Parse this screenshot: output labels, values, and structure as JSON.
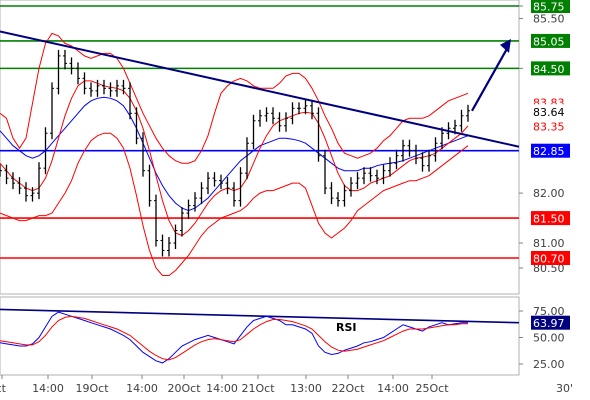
{
  "chart_data": [
    {
      "type": "line",
      "panel": "price",
      "title": "",
      "xlabel": "",
      "ylabel": "",
      "ylim": [
        80.3,
        85.85
      ],
      "grid": false,
      "y_ticks": [
        "85.75",
        "85.50",
        "84.50",
        "82.00",
        "81.00",
        "80.50"
      ],
      "levels": [
        {
          "value": 85.75,
          "label": "85.75",
          "color": "#008000"
        },
        {
          "value": 85.05,
          "label": "85.05",
          "color": "#008000"
        },
        {
          "value": 84.5,
          "label": "84.50",
          "color": "#008000"
        },
        {
          "value": 82.85,
          "label": "82.85",
          "color": "#0000ff"
        },
        {
          "value": 81.5,
          "label": "81.50",
          "color": "#ff0000"
        },
        {
          "value": 80.7,
          "label": "80.70",
          "color": "#ff0000"
        }
      ],
      "value_tags": [
        {
          "value": 83.83,
          "label": "83.83",
          "color": "#ff0000"
        },
        {
          "value": 83.64,
          "label": "83.64",
          "color": "#000000"
        },
        {
          "value": 83.35,
          "label": "83.35",
          "color": "#ff0000"
        }
      ],
      "trendline": {
        "color": "#000080",
        "from": 85.24,
        "to": 82.93
      },
      "forecast_arrow": {
        "color": "#000080",
        "from": 83.65,
        "to": 85.05
      },
      "series": [
        {
          "role": "price",
          "color": "#000000",
          "values": [
            82.45,
            82.3,
            82.2,
            82.1,
            81.95,
            82.0,
            82.5,
            83.2,
            84.1,
            84.75,
            84.6,
            84.5,
            84.3,
            84.1,
            84.05,
            84.15,
            84.1,
            84.05,
            84.15,
            84.1,
            83.6,
            83.1,
            82.45,
            81.85,
            81.05,
            80.85,
            81.0,
            81.25,
            81.6,
            81.75,
            81.9,
            82.1,
            82.3,
            82.25,
            82.2,
            82.1,
            81.85,
            82.4,
            83.0,
            83.45,
            83.55,
            83.6,
            83.5,
            83.35,
            83.5,
            83.7,
            83.7,
            83.75,
            83.6,
            82.75,
            82.1,
            81.9,
            81.85,
            82.05,
            82.2,
            82.3,
            82.4,
            82.35,
            82.3,
            82.45,
            82.6,
            82.75,
            82.95,
            82.85,
            82.7,
            82.55,
            82.75,
            83.0,
            83.2,
            83.3,
            83.35,
            83.55,
            83.65
          ]
        },
        {
          "role": "bollinger-upper",
          "color": "#ff0000",
          "values": [
            83.6,
            83.5,
            83.1,
            82.9,
            83.1,
            83.8,
            84.5,
            85.0,
            85.2,
            85.15,
            85.0,
            84.95,
            84.85,
            84.75,
            84.7,
            84.75,
            84.8,
            84.8,
            84.7,
            84.5,
            84.2,
            83.9,
            83.6,
            83.35,
            83.1,
            82.9,
            82.75,
            82.65,
            82.6,
            82.6,
            82.65,
            82.85,
            83.15,
            83.6,
            84.0,
            84.15,
            84.25,
            84.3,
            84.25,
            84.15,
            84.1,
            84.1,
            84.1,
            84.2,
            84.35,
            84.4,
            84.4,
            84.3,
            84.1,
            83.85,
            83.55,
            83.3,
            83.0,
            82.8,
            82.75,
            82.7,
            82.75,
            82.8,
            82.9,
            83.05,
            83.15,
            83.3,
            83.45,
            83.5,
            83.5,
            83.5,
            83.55,
            83.65,
            83.75,
            83.85,
            83.9,
            83.95,
            84.0
          ]
        },
        {
          "role": "bollinger-lower",
          "color": "#ff0000",
          "values": [
            81.6,
            81.55,
            81.5,
            81.45,
            81.45,
            81.5,
            81.55,
            81.55,
            81.6,
            81.8,
            82.0,
            82.25,
            82.6,
            82.85,
            83.05,
            83.15,
            83.2,
            83.2,
            83.1,
            82.9,
            82.5,
            81.95,
            81.35,
            80.85,
            80.5,
            80.35,
            80.35,
            80.45,
            80.6,
            80.75,
            80.95,
            81.15,
            81.3,
            81.4,
            81.5,
            81.55,
            81.6,
            81.65,
            81.75,
            81.9,
            82.0,
            82.05,
            82.05,
            82.1,
            82.15,
            82.2,
            82.2,
            82.1,
            81.75,
            81.4,
            81.2,
            81.1,
            81.2,
            81.3,
            81.45,
            81.65,
            81.75,
            81.85,
            81.95,
            82.05,
            82.1,
            82.15,
            82.2,
            82.25,
            82.25,
            82.3,
            82.35,
            82.45,
            82.55,
            82.65,
            82.75,
            82.85,
            82.95
          ]
        },
        {
          "role": "moving-average",
          "color": "#0000ff",
          "values": [
            83.25,
            83.1,
            82.95,
            82.85,
            82.75,
            82.7,
            82.75,
            82.85,
            83.0,
            83.15,
            83.3,
            83.45,
            83.6,
            83.75,
            83.85,
            83.9,
            83.92,
            83.9,
            83.85,
            83.75,
            83.55,
            83.3,
            83.0,
            82.7,
            82.4,
            82.15,
            81.95,
            81.8,
            81.7,
            81.65,
            81.7,
            81.8,
            81.9,
            82.05,
            82.2,
            82.35,
            82.5,
            82.65,
            82.75,
            82.85,
            82.95,
            83.0,
            83.05,
            83.1,
            83.1,
            83.08,
            83.05,
            83.0,
            82.9,
            82.8,
            82.7,
            82.6,
            82.5,
            82.45,
            82.45,
            82.45,
            82.5,
            82.5,
            82.55,
            82.58,
            82.6,
            82.62,
            82.65,
            82.7,
            82.75,
            82.8,
            82.85,
            82.9,
            82.95,
            83.0,
            83.05,
            83.1,
            83.15
          ]
        },
        {
          "role": "fast-average",
          "color": "#ff0000",
          "values": [
            82.6,
            82.45,
            82.3,
            82.2,
            82.1,
            82.05,
            82.1,
            82.3,
            82.65,
            83.1,
            83.55,
            83.9,
            84.15,
            84.25,
            84.25,
            84.2,
            84.15,
            84.12,
            84.1,
            84.05,
            83.9,
            83.65,
            83.3,
            82.85,
            82.35,
            81.85,
            81.45,
            81.2,
            81.15,
            81.25,
            81.4,
            81.6,
            81.8,
            81.95,
            82.05,
            82.1,
            82.05,
            82.1,
            82.3,
            82.6,
            82.9,
            83.15,
            83.35,
            83.45,
            83.5,
            83.55,
            83.6,
            83.62,
            83.6,
            83.4,
            83.1,
            82.75,
            82.4,
            82.15,
            82.05,
            82.05,
            82.1,
            82.2,
            82.25,
            82.3,
            82.35,
            82.45,
            82.55,
            82.65,
            82.7,
            82.72,
            82.75,
            82.8,
            82.9,
            83.0,
            83.1,
            83.2,
            83.35
          ]
        }
      ]
    },
    {
      "type": "line",
      "panel": "rsi",
      "title": "RSI",
      "xlabel": "",
      "ylabel": "",
      "ylim": [
        20,
        80
      ],
      "grid": false,
      "y_ticks": [
        "75.00",
        "50.00",
        "25.00"
      ],
      "trendline": {
        "color": "#000080",
        "from": 76.5,
        "to": 63.97
      },
      "value_tags": [
        {
          "value": 63.97,
          "label": "63.97",
          "color": "#000080"
        }
      ],
      "series": [
        {
          "role": "rsi",
          "color": "#0000ff",
          "values": [
            45,
            44,
            43,
            42,
            42,
            44,
            50,
            60,
            70,
            74,
            72,
            70,
            68,
            66,
            64,
            62,
            60,
            58,
            55,
            52,
            48,
            42,
            36,
            32,
            28,
            26,
            30,
            36,
            42,
            45,
            48,
            50,
            52,
            50,
            48,
            46,
            44,
            52,
            60,
            66,
            68,
            70,
            68,
            66,
            62,
            62,
            60,
            58,
            54,
            42,
            36,
            34,
            35,
            38,
            40,
            42,
            45,
            46,
            48,
            50,
            54,
            58,
            62,
            60,
            58,
            56,
            60,
            62,
            64,
            62,
            63,
            64,
            63.97
          ]
        },
        {
          "role": "rsi-signal",
          "color": "#ff0000",
          "values": [
            47,
            46,
            45,
            44,
            43,
            43,
            46,
            52,
            60,
            66,
            69,
            70,
            69,
            68,
            66,
            64,
            62,
            60,
            58,
            55,
            52,
            47,
            42,
            37,
            33,
            30,
            29,
            31,
            35,
            39,
            43,
            46,
            48,
            49,
            48,
            47,
            46,
            48,
            53,
            58,
            62,
            65,
            67,
            67,
            66,
            65,
            63,
            61,
            58,
            52,
            46,
            41,
            38,
            37,
            38,
            39,
            41,
            43,
            45,
            47,
            50,
            53,
            56,
            58,
            58,
            58,
            59,
            60,
            61,
            62,
            62,
            63,
            63
          ]
        }
      ]
    }
  ],
  "x_axis": {
    "labels": [
      "ct",
      "14:00",
      "19Oct",
      "14:00",
      "20Oct",
      "14:00",
      "21Oct",
      "13:00",
      "22Oct",
      "14:00",
      "25Oct",
      "30'"
    ]
  }
}
